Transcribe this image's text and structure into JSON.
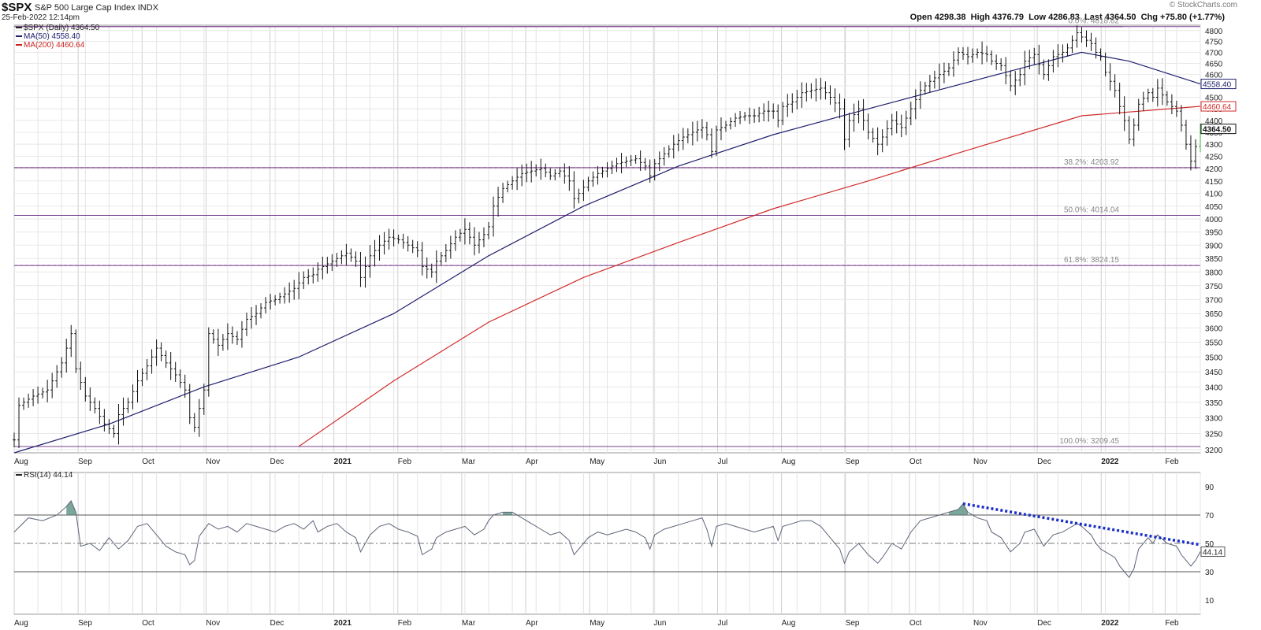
{
  "header": {
    "ticker": "$SPX",
    "name": "S&P 500 Large Cap Index",
    "exchange": "INDX",
    "timestamp": "25-Feb-2022 12:14pm",
    "credit": "© StockCharts.com",
    "ohlc": {
      "open_label": "Open",
      "open": "4298.38",
      "high_label": "High",
      "high": "4376.79",
      "low_label": "Low",
      "low": "4286.83",
      "last_label": "Last",
      "last": "4364.50",
      "chg_label": "Chg",
      "chg": "+75.80 (+1.77%)"
    }
  },
  "chart_data": [
    {
      "type": "line",
      "panel": "price",
      "legend": [
        {
          "text": "$SPX (Daily) 4364.50",
          "color": "#222222"
        },
        {
          "text": "MA(50) 4558.40",
          "color": "#1f1f6e"
        },
        {
          "text": "MA(200) 4460.64",
          "color": "#cc2222"
        }
      ],
      "x_labels": [
        "Aug",
        "Sep",
        "Oct",
        "Nov",
        "Dec",
        "2021",
        "Feb",
        "Mar",
        "Apr",
        "May",
        "Jun",
        "Jul",
        "Aug",
        "Sep",
        "Oct",
        "Nov",
        "Dec",
        "2022",
        "Feb"
      ],
      "y_ticks": [
        3200,
        3250,
        3300,
        3350,
        3400,
        3450,
        3500,
        3550,
        3600,
        3650,
        3700,
        3750,
        3800,
        3850,
        3900,
        3950,
        4000,
        4050,
        4100,
        4150,
        4200,
        4250,
        4300,
        4350,
        4400,
        4450,
        4500,
        4550,
        4600,
        4650,
        4700,
        4750,
        4800
      ],
      "ylim": [
        3190,
        4825
      ],
      "scale": "log",
      "grid": true,
      "price_path": [
        [
          0,
          3230
        ],
        [
          1,
          3340
        ],
        [
          4,
          3370
        ],
        [
          7,
          3390
        ],
        [
          10,
          3480
        ],
        [
          12,
          3580
        ],
        [
          13,
          3460
        ],
        [
          15,
          3370
        ],
        [
          17,
          3330
        ],
        [
          19,
          3280
        ],
        [
          21,
          3250
        ],
        [
          22,
          3310
        ],
        [
          24,
          3350
        ],
        [
          26,
          3420
        ],
        [
          28,
          3470
        ],
        [
          30,
          3530
        ],
        [
          32,
          3480
        ],
        [
          34,
          3440
        ],
        [
          36,
          3390
        ],
        [
          37,
          3300
        ],
        [
          38,
          3270
        ],
        [
          40,
          3390
        ],
        [
          41,
          3580
        ],
        [
          43,
          3540
        ],
        [
          45,
          3580
        ],
        [
          47,
          3560
        ],
        [
          49,
          3630
        ],
        [
          51,
          3650
        ],
        [
          53,
          3690
        ],
        [
          55,
          3700
        ],
        [
          57,
          3720
        ],
        [
          59,
          3740
        ],
        [
          61,
          3780
        ],
        [
          63,
          3790
        ],
        [
          64,
          3810
        ],
        [
          66,
          3830
        ],
        [
          68,
          3850
        ],
        [
          70,
          3870
        ],
        [
          72,
          3840
        ],
        [
          73,
          3780
        ],
        [
          75,
          3860
        ],
        [
          77,
          3900
        ],
        [
          79,
          3930
        ],
        [
          81,
          3920
        ],
        [
          83,
          3900
        ],
        [
          85,
          3880
        ],
        [
          86,
          3820
        ],
        [
          88,
          3800
        ],
        [
          89,
          3840
        ],
        [
          91,
          3880
        ],
        [
          93,
          3930
        ],
        [
          95,
          3960
        ],
        [
          97,
          3900
        ],
        [
          99,
          3940
        ],
        [
          100,
          3970
        ],
        [
          101,
          4050
        ],
        [
          103,
          4120
        ],
        [
          105,
          4150
        ],
        [
          107,
          4180
        ],
        [
          109,
          4190
        ],
        [
          111,
          4200
        ],
        [
          113,
          4170
        ],
        [
          115,
          4190
        ],
        [
          117,
          4150
        ],
        [
          118,
          4080
        ],
        [
          119,
          4100
        ],
        [
          121,
          4150
        ],
        [
          123,
          4180
        ],
        [
          125,
          4200
        ],
        [
          127,
          4220
        ],
        [
          129,
          4230
        ],
        [
          131,
          4240
        ],
        [
          133,
          4210
        ],
        [
          134,
          4170
        ],
        [
          135,
          4220
        ],
        [
          137,
          4260
        ],
        [
          139,
          4300
        ],
        [
          141,
          4330
        ],
        [
          143,
          4350
        ],
        [
          145,
          4370
        ],
        [
          146,
          4340
        ],
        [
          147,
          4270
        ],
        [
          148,
          4360
        ],
        [
          150,
          4380
        ],
        [
          152,
          4410
        ],
        [
          154,
          4420
        ],
        [
          156,
          4420
        ],
        [
          158,
          4440
        ],
        [
          160,
          4440
        ],
        [
          161,
          4400
        ],
        [
          162,
          4460
        ],
        [
          164,
          4480
        ],
        [
          166,
          4520
        ],
        [
          168,
          4530
        ],
        [
          170,
          4540
        ],
        [
          172,
          4500
        ],
        [
          174,
          4450
        ],
        [
          175,
          4320
        ],
        [
          176,
          4400
        ],
        [
          178,
          4450
        ],
        [
          180,
          4350
        ],
        [
          182,
          4300
        ],
        [
          183,
          4330
        ],
        [
          185,
          4400
        ],
        [
          187,
          4370
        ],
        [
          189,
          4450
        ],
        [
          191,
          4530
        ],
        [
          193,
          4570
        ],
        [
          195,
          4600
        ],
        [
          197,
          4630
        ],
        [
          199,
          4700
        ],
        [
          201,
          4680
        ],
        [
          203,
          4700
        ],
        [
          205,
          4690
        ],
        [
          206,
          4660
        ],
        [
          208,
          4640
        ],
        [
          210,
          4550
        ],
        [
          212,
          4600
        ],
        [
          213,
          4660
        ],
        [
          215,
          4690
        ],
        [
          217,
          4600
        ],
        [
          219,
          4680
        ],
        [
          221,
          4700
        ],
        [
          222,
          4720
        ],
        [
          224,
          4790
        ],
        [
          225,
          4770
        ],
        [
          227,
          4740
        ],
        [
          228,
          4700
        ],
        [
          229,
          4680
        ],
        [
          230,
          4610
        ],
        [
          232,
          4530
        ],
        [
          233,
          4460
        ],
        [
          234,
          4400
        ],
        [
          235,
          4320
        ],
        [
          236,
          4380
        ],
        [
          237,
          4470
        ],
        [
          239,
          4520
        ],
        [
          240,
          4500
        ],
        [
          241,
          4540
        ],
        [
          243,
          4480
        ],
        [
          245,
          4440
        ],
        [
          246,
          4380
        ],
        [
          247,
          4300
        ],
        [
          248,
          4230
        ],
        [
          249,
          4290
        ],
        [
          250,
          4364.5
        ]
      ],
      "ma50": {
        "name": "MA(50)",
        "last": 4558.4,
        "path": [
          [
            0,
            3190
          ],
          [
            20,
            3280
          ],
          [
            40,
            3400
          ],
          [
            60,
            3500
          ],
          [
            80,
            3650
          ],
          [
            100,
            3860
          ],
          [
            120,
            4050
          ],
          [
            140,
            4210
          ],
          [
            160,
            4340
          ],
          [
            180,
            4450
          ],
          [
            200,
            4560
          ],
          [
            225,
            4700
          ],
          [
            235,
            4660
          ],
          [
            250,
            4558.4
          ]
        ]
      },
      "ma200": {
        "name": "MA(200)",
        "last": 4460.64,
        "path": [
          [
            60,
            3210
          ],
          [
            80,
            3420
          ],
          [
            100,
            3620
          ],
          [
            120,
            3780
          ],
          [
            140,
            3910
          ],
          [
            160,
            4040
          ],
          [
            180,
            4150
          ],
          [
            200,
            4270
          ],
          [
            225,
            4420
          ],
          [
            250,
            4460.64
          ]
        ]
      },
      "fib_levels": [
        {
          "label": "0.0%: 4818.62",
          "value": 4818.62
        },
        {
          "label": "38.2%: 4203.92",
          "value": 4203.92
        },
        {
          "label": "50.0%: 4014.04",
          "value": 4014.04
        },
        {
          "label": "61.8%: 3824.15",
          "value": 3824.15
        },
        {
          "label": "100.0%: 3209.45",
          "value": 3209.45
        }
      ],
      "last_tags": [
        {
          "text": "4558.40",
          "value": 4558.4
        },
        {
          "text": "4460.64",
          "value": 4460.64
        },
        {
          "text": "4364.50",
          "value": 4364.5
        }
      ]
    },
    {
      "type": "line",
      "panel": "rsi",
      "legend": [
        {
          "text": "RSI(14) 44.14",
          "color": "#222222"
        }
      ],
      "y_ticks": [
        10,
        30,
        50,
        70,
        90
      ],
      "ylim": [
        0,
        100
      ],
      "overbought": 70,
      "oversold": 30,
      "centerline": 50,
      "last": 44.14,
      "last_tag": "44.14",
      "trendline": {
        "x1": 200,
        "y1": 78,
        "x2": 250,
        "y2": 49
      },
      "path": [
        [
          0,
          58
        ],
        [
          3,
          68
        ],
        [
          6,
          66
        ],
        [
          9,
          70
        ],
        [
          11,
          76
        ],
        [
          12,
          80
        ],
        [
          13,
          72
        ],
        [
          14,
          48
        ],
        [
          16,
          50
        ],
        [
          18,
          45
        ],
        [
          20,
          54
        ],
        [
          22,
          46
        ],
        [
          24,
          52
        ],
        [
          26,
          62
        ],
        [
          28,
          64
        ],
        [
          30,
          56
        ],
        [
          32,
          48
        ],
        [
          34,
          44
        ],
        [
          36,
          42
        ],
        [
          37,
          35
        ],
        [
          38,
          38
        ],
        [
          39,
          55
        ],
        [
          41,
          64
        ],
        [
          43,
          60
        ],
        [
          45,
          62
        ],
        [
          47,
          58
        ],
        [
          49,
          64
        ],
        [
          51,
          62
        ],
        [
          53,
          60
        ],
        [
          55,
          58
        ],
        [
          57,
          62
        ],
        [
          59,
          64
        ],
        [
          61,
          60
        ],
        [
          63,
          66
        ],
        [
          64,
          58
        ],
        [
          66,
          62
        ],
        [
          68,
          64
        ],
        [
          70,
          58
        ],
        [
          72,
          54
        ],
        [
          73,
          44
        ],
        [
          75,
          56
        ],
        [
          77,
          62
        ],
        [
          79,
          64
        ],
        [
          81,
          60
        ],
        [
          83,
          58
        ],
        [
          85,
          55
        ],
        [
          86,
          42
        ],
        [
          88,
          46
        ],
        [
          89,
          54
        ],
        [
          91,
          58
        ],
        [
          93,
          60
        ],
        [
          95,
          62
        ],
        [
          97,
          56
        ],
        [
          99,
          60
        ],
        [
          100,
          66
        ],
        [
          101,
          70
        ],
        [
          103,
          72
        ],
        [
          105,
          72
        ],
        [
          107,
          68
        ],
        [
          109,
          64
        ],
        [
          111,
          60
        ],
        [
          113,
          56
        ],
        [
          115,
          58
        ],
        [
          117,
          52
        ],
        [
          118,
          42
        ],
        [
          119,
          46
        ],
        [
          121,
          54
        ],
        [
          123,
          58
        ],
        [
          125,
          56
        ],
        [
          127,
          58
        ],
        [
          129,
          60
        ],
        [
          131,
          58
        ],
        [
          133,
          54
        ],
        [
          134,
          46
        ],
        [
          135,
          56
        ],
        [
          137,
          60
        ],
        [
          139,
          62
        ],
        [
          141,
          64
        ],
        [
          143,
          66
        ],
        [
          145,
          68
        ],
        [
          146,
          60
        ],
        [
          147,
          48
        ],
        [
          148,
          62
        ],
        [
          150,
          64
        ],
        [
          152,
          62
        ],
        [
          154,
          60
        ],
        [
          156,
          58
        ],
        [
          158,
          60
        ],
        [
          160,
          62
        ],
        [
          161,
          52
        ],
        [
          162,
          62
        ],
        [
          164,
          64
        ],
        [
          166,
          66
        ],
        [
          168,
          66
        ],
        [
          170,
          62
        ],
        [
          172,
          54
        ],
        [
          174,
          46
        ],
        [
          175,
          36
        ],
        [
          176,
          44
        ],
        [
          178,
          50
        ],
        [
          180,
          42
        ],
        [
          182,
          36
        ],
        [
          183,
          40
        ],
        [
          185,
          50
        ],
        [
          187,
          46
        ],
        [
          189,
          58
        ],
        [
          191,
          66
        ],
        [
          193,
          68
        ],
        [
          195,
          70
        ],
        [
          197,
          72
        ],
        [
          199,
          74
        ],
        [
          200,
          78
        ],
        [
          201,
          72
        ],
        [
          203,
          68
        ],
        [
          205,
          66
        ],
        [
          206,
          58
        ],
        [
          208,
          54
        ],
        [
          210,
          44
        ],
        [
          212,
          50
        ],
        [
          213,
          58
        ],
        [
          215,
          60
        ],
        [
          217,
          48
        ],
        [
          219,
          56
        ],
        [
          221,
          58
        ],
        [
          222,
          60
        ],
        [
          224,
          64
        ],
        [
          225,
          62
        ],
        [
          227,
          56
        ],
        [
          228,
          50
        ],
        [
          229,
          46
        ],
        [
          230,
          44
        ],
        [
          232,
          40
        ],
        [
          233,
          34
        ],
        [
          234,
          30
        ],
        [
          235,
          26
        ],
        [
          236,
          32
        ],
        [
          237,
          46
        ],
        [
          239,
          54
        ],
        [
          240,
          50
        ],
        [
          241,
          56
        ],
        [
          243,
          50
        ],
        [
          245,
          48
        ],
        [
          246,
          42
        ],
        [
          247,
          38
        ],
        [
          248,
          34
        ],
        [
          249,
          38
        ],
        [
          250,
          44.14
        ]
      ]
    }
  ]
}
